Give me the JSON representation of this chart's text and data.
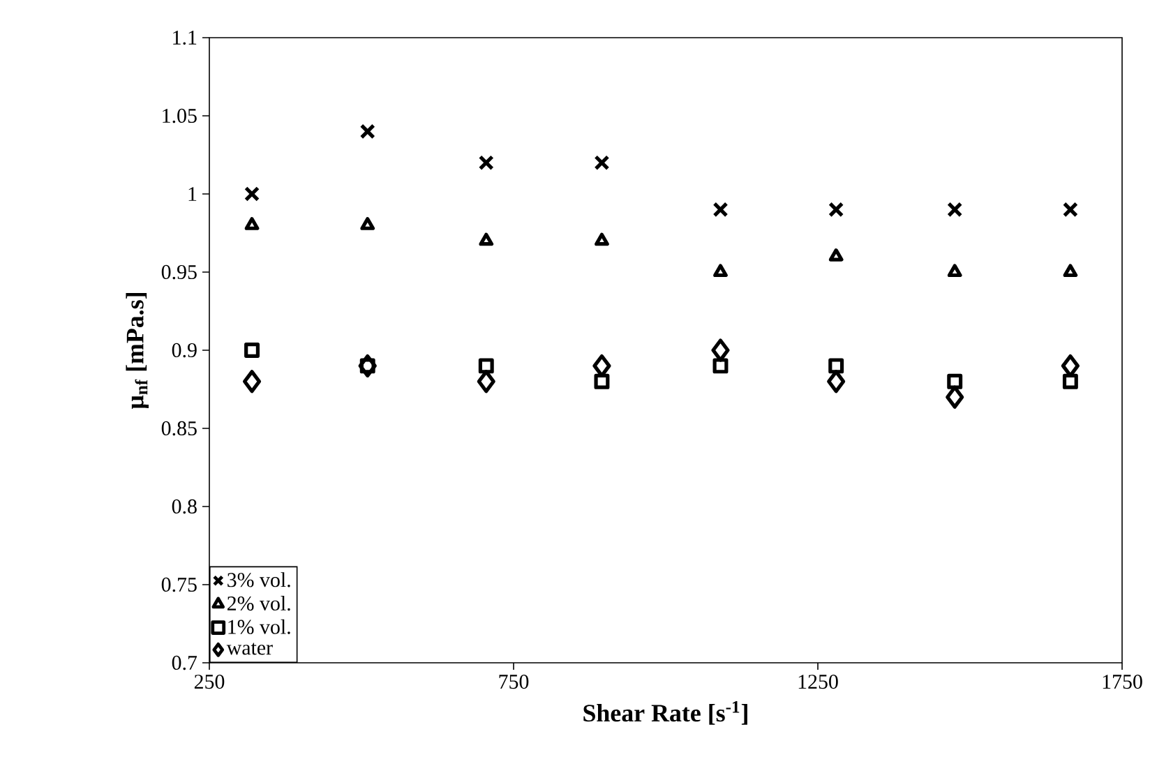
{
  "chart_data": {
    "type": "scatter",
    "xlabel": "Shear Rate [s$^{-1}$]",
    "ylabel": "μ$_{nf}$ [mPa.s]",
    "x": [
      320,
      510,
      705,
      895,
      1090,
      1280,
      1475,
      1665
    ],
    "xlim": [
      250,
      1750
    ],
    "xticks": [
      250,
      750,
      1250,
      1750
    ],
    "ylim": [
      0.7,
      1.1
    ],
    "yticks": [
      0.7,
      0.75,
      0.8,
      0.85,
      0.9,
      0.95,
      1,
      1.05,
      1.1
    ],
    "grid": false,
    "legend": "bottom left",
    "series": [
      {
        "name": "3% vol.",
        "color": "#000000",
        "marker": "cross",
        "values": [
          1.0,
          1.04,
          1.02,
          1.02,
          0.99,
          0.99,
          0.99,
          0.99
        ]
      },
      {
        "name": "2% vol.",
        "color": "#000000",
        "marker": "triangle",
        "values": [
          0.98,
          0.98,
          0.97,
          0.97,
          0.95,
          0.96,
          0.95,
          0.95
        ]
      },
      {
        "name": "1% vol.",
        "color": "#000000",
        "marker": "square",
        "values": [
          0.9,
          0.89,
          0.89,
          0.88,
          0.89,
          0.89,
          0.88,
          0.88
        ]
      },
      {
        "name": "water",
        "color": "#000000",
        "marker": "diamond",
        "values": [
          0.88,
          0.89,
          0.88,
          0.89,
          0.9,
          0.88,
          0.87,
          0.89
        ]
      }
    ]
  }
}
